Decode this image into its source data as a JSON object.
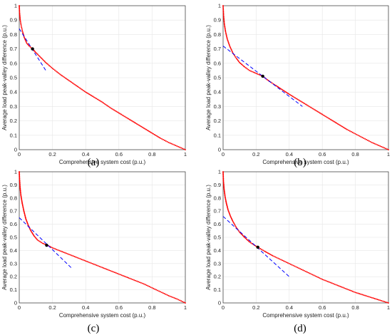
{
  "figure": {
    "panel_labels": [
      "(a)",
      "(b)",
      "(c)",
      "(d)"
    ],
    "colors": {
      "pareto": "#ff0000",
      "tangent": "#0000ff",
      "point": "#000000",
      "axis": "#333333",
      "grid": "#e6e6e6"
    }
  },
  "chart_data": [
    {
      "type": "scatter",
      "panel": "(a)",
      "xlabel": "Comprehensive system cost (p.u.)",
      "ylabel": "Average load peak-valley difference (p.u.)",
      "xlim": [
        0,
        1
      ],
      "ylim": [
        0,
        1
      ],
      "xticks": [
        "0",
        "0.2",
        "0.4",
        "0.6",
        "0.8",
        "1"
      ],
      "yticks": [
        "0",
        "0.1",
        "0.2",
        "0.3",
        "0.4",
        "0.5",
        "0.6",
        "0.7",
        "0.8",
        "0.9",
        "1"
      ],
      "grid": true,
      "series": [
        {
          "x": [
            0,
            0.002,
            0.006,
            0.012,
            0.02,
            0.03,
            0.045,
            0.06,
            0.08,
            0.1,
            0.13,
            0.16,
            0.2,
            0.25,
            0.3,
            0.35,
            0.4,
            0.45,
            0.5,
            0.55,
            0.6,
            0.65,
            0.7,
            0.75,
            0.8,
            0.85,
            0.9,
            0.95,
            1
          ],
          "y": [
            1,
            0.95,
            0.9,
            0.86,
            0.82,
            0.78,
            0.74,
            0.72,
            0.7,
            0.675,
            0.64,
            0.605,
            0.565,
            0.52,
            0.48,
            0.44,
            0.4,
            0.365,
            0.33,
            0.29,
            0.255,
            0.22,
            0.185,
            0.15,
            0.115,
            0.08,
            0.05,
            0.025,
            0
          ]
        }
      ],
      "tangent_line": {
        "x": [
          0,
          0.16
        ],
        "y": [
          0.84,
          0.55
        ]
      },
      "selected_point": {
        "x": 0.08,
        "y": 0.7
      }
    },
    {
      "type": "scatter",
      "panel": "(b)",
      "xlabel": "Comprehensive system cost (p.u.)",
      "ylabel": "Average load peak-valley difference (p.u.)",
      "xlim": [
        0,
        1
      ],
      "ylim": [
        0,
        1
      ],
      "xticks": [
        "0",
        "0.2",
        "0.4",
        "0.6",
        "0.8",
        "1"
      ],
      "yticks": [
        "0",
        "0.1",
        "0.2",
        "0.3",
        "0.4",
        "0.5",
        "0.6",
        "0.7",
        "0.8",
        "0.9",
        "1"
      ],
      "grid": true,
      "series": [
        {
          "x": [
            0,
            0.003,
            0.008,
            0.015,
            0.025,
            0.04,
            0.06,
            0.08,
            0.1,
            0.13,
            0.16,
            0.2,
            0.24,
            0.28,
            0.32,
            0.36,
            0.4,
            0.45,
            0.5,
            0.55,
            0.6,
            0.65,
            0.7,
            0.75,
            0.8,
            0.85,
            0.9,
            0.95,
            1
          ],
          "y": [
            1,
            0.93,
            0.87,
            0.82,
            0.77,
            0.72,
            0.67,
            0.635,
            0.605,
            0.575,
            0.55,
            0.53,
            0.51,
            0.475,
            0.445,
            0.415,
            0.385,
            0.35,
            0.315,
            0.28,
            0.245,
            0.21,
            0.175,
            0.14,
            0.11,
            0.08,
            0.05,
            0.025,
            0
          ]
        }
      ],
      "tangent_line": {
        "x": [
          0,
          0.48
        ],
        "y": [
          0.72,
          0.3
        ]
      },
      "selected_point": {
        "x": 0.24,
        "y": 0.51
      }
    },
    {
      "type": "scatter",
      "panel": "(c)",
      "xlabel": "Comprehensive system cost (p.u.)",
      "ylabel": "Average load peak-valley difference (p.u.)",
      "xlim": [
        0,
        1
      ],
      "ylim": [
        0,
        1
      ],
      "xticks": [
        "0",
        "0.2",
        "0.4",
        "0.6",
        "0.8",
        "1"
      ],
      "yticks": [
        "0",
        "0.1",
        "0.2",
        "0.3",
        "0.4",
        "0.5",
        "0.6",
        "0.7",
        "0.8",
        "0.9",
        "1"
      ],
      "grid": true,
      "series": [
        {
          "x": [
            0,
            0.002,
            0.005,
            0.01,
            0.018,
            0.028,
            0.04,
            0.055,
            0.07,
            0.09,
            0.11,
            0.14,
            0.17,
            0.2,
            0.25,
            0.3,
            0.35,
            0.4,
            0.45,
            0.5,
            0.55,
            0.6,
            0.65,
            0.7,
            0.75,
            0.8,
            0.85,
            0.9,
            0.95,
            1
          ],
          "y": [
            1,
            0.94,
            0.88,
            0.82,
            0.76,
            0.7,
            0.64,
            0.59,
            0.55,
            0.51,
            0.48,
            0.455,
            0.44,
            0.42,
            0.395,
            0.37,
            0.345,
            0.32,
            0.295,
            0.27,
            0.245,
            0.22,
            0.195,
            0.17,
            0.145,
            0.115,
            0.085,
            0.055,
            0.03,
            0
          ]
        }
      ],
      "tangent_line": {
        "x": [
          0,
          0.32
        ],
        "y": [
          0.65,
          0.26
        ]
      },
      "selected_point": {
        "x": 0.165,
        "y": 0.44
      }
    },
    {
      "type": "scatter",
      "panel": "(d)",
      "xlabel": "Comprehensive system cost (p.u.)",
      "ylabel": "Average load peak-valley difference (p.u.)",
      "xlim": [
        0,
        1
      ],
      "ylim": [
        0,
        1
      ],
      "xticks": [
        "0",
        "0.2",
        "0.4",
        "0.6",
        "0.8",
        "1"
      ],
      "yticks": [
        "0",
        "0.1",
        "0.2",
        "0.3",
        "0.4",
        "0.5",
        "0.6",
        "0.7",
        "0.8",
        "0.9",
        "1"
      ],
      "grid": true,
      "series": [
        {
          "x": [
            0,
            0.002,
            0.006,
            0.012,
            0.02,
            0.03,
            0.045,
            0.06,
            0.08,
            0.1,
            0.13,
            0.16,
            0.19,
            0.21,
            0.25,
            0.3,
            0.35,
            0.4,
            0.45,
            0.5,
            0.55,
            0.6,
            0.65,
            0.7,
            0.75,
            0.8,
            0.85,
            0.9,
            0.95,
            1
          ],
          "y": [
            1,
            0.93,
            0.87,
            0.81,
            0.76,
            0.71,
            0.66,
            0.62,
            0.575,
            0.54,
            0.5,
            0.465,
            0.44,
            0.425,
            0.395,
            0.36,
            0.33,
            0.3,
            0.27,
            0.24,
            0.21,
            0.18,
            0.155,
            0.13,
            0.105,
            0.08,
            0.06,
            0.04,
            0.02,
            0
          ]
        }
      ],
      "tangent_line": {
        "x": [
          0,
          0.4
        ],
        "y": [
          0.66,
          0.2
        ]
      },
      "selected_point": {
        "x": 0.21,
        "y": 0.425
      }
    }
  ]
}
